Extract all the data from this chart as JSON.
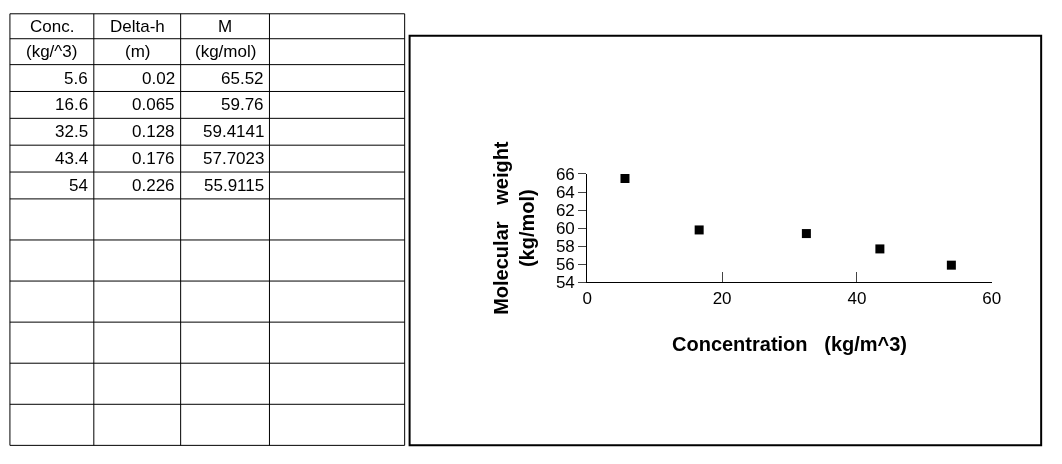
{
  "chart_data": {
    "type": "scatter",
    "x": [
      5.6,
      16.6,
      32.5,
      43.4,
      54
    ],
    "values": [
      65.5,
      59.8,
      59.4,
      57.7,
      55.9
    ],
    "color": "#000000",
    "marker": "square",
    "xlim": [
      0,
      60
    ],
    "xticks": [
      0,
      20,
      40,
      60
    ],
    "ylim": [
      54,
      66
    ],
    "yticks": [
      54,
      56,
      58,
      60,
      62,
      64,
      66
    ],
    "xlabel": "Concentration   (kg/m^3)",
    "ylabel": "Molecular   weight\n(kg/mol)",
    "annotations": [
      "Conc.",
      "Delta-h",
      "M",
      "(kg/^3)",
      "(m)",
      "(kg/mol)",
      "5.6",
      "0.02",
      "65.52",
      "16.6",
      "0.065",
      "59.76",
      "32.5",
      "0.128",
      "59.4141",
      "43.4",
      "0.176",
      "57.7023",
      "54",
      "0.226",
      "55.9115"
    ]
  }
}
